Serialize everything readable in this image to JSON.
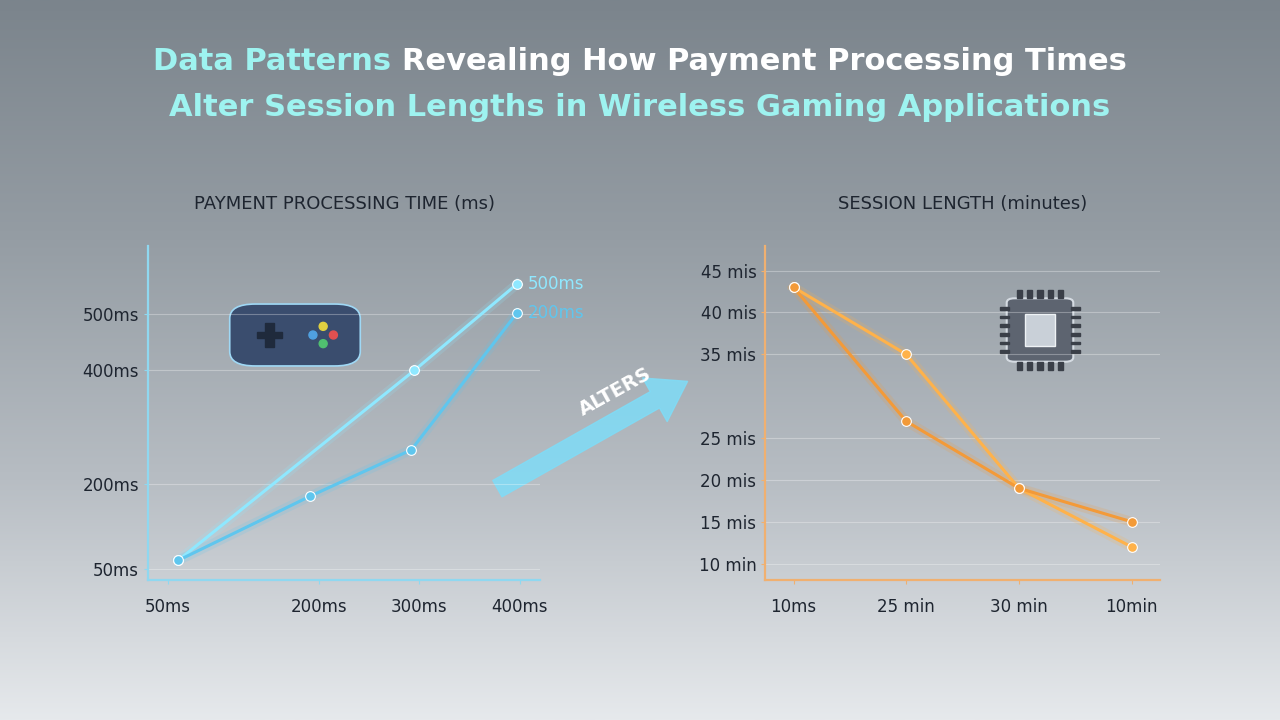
{
  "title": "Data Patterns Revealing How Payment Processing Times Alter Session Lengths in Wireless Gaming Applications",
  "connector_label": "ALTERS",
  "chart_data": [
    {
      "type": "line",
      "title": "PAYMENT PROCESSING TIME (ms)",
      "xlim": [
        30,
        420
      ],
      "xticks": [
        {
          "value": 50,
          "label": "50ms"
        },
        {
          "value": 200,
          "label": "200ms"
        },
        {
          "value": 300,
          "label": "300ms"
        },
        {
          "value": 400,
          "label": "400ms"
        }
      ],
      "ylim": [
        30,
        620
      ],
      "yticks": [
        {
          "value": 50,
          "label": "50ms"
        },
        {
          "value": 200,
          "label": "200ms"
        },
        {
          "value": 400,
          "label": "400ms"
        },
        {
          "value": 500,
          "label": "500ms"
        }
      ],
      "grid": true,
      "series": [
        {
          "name": "500ms",
          "color": "#8fe8ff",
          "marker": "circle",
          "x": [
            60,
            295,
            397
          ],
          "values": [
            65,
            400,
            552
          ]
        },
        {
          "name": "200ms",
          "color": "#5fc6ee",
          "marker": "circle",
          "x": [
            60,
            191,
            292,
            397
          ],
          "values": [
            65,
            178,
            260,
            501
          ]
        }
      ]
    },
    {
      "type": "line",
      "title": "SESSION LENGTH (minutes)",
      "categories": [
        "10ms",
        "25 min",
        "30 min",
        "10min"
      ],
      "ylim": [
        8,
        48
      ],
      "yticks": [
        {
          "value": 10,
          "label": "10 min"
        },
        {
          "value": 15,
          "label": "15 mis"
        },
        {
          "value": 20,
          "label": "20 mis"
        },
        {
          "value": 25,
          "label": "25 mis"
        },
        {
          "value": 35,
          "label": "35 mis"
        },
        {
          "value": 40,
          "label": "40 mis"
        },
        {
          "value": 45,
          "label": "45 mis"
        }
      ],
      "grid": true,
      "series": [
        {
          "color": "#ffb24a",
          "marker": "circle",
          "values": [
            43,
            35,
            19,
            12
          ]
        },
        {
          "color": "#f39a38",
          "marker": "circle",
          "values": [
            43,
            27,
            19,
            15
          ]
        }
      ]
    }
  ]
}
